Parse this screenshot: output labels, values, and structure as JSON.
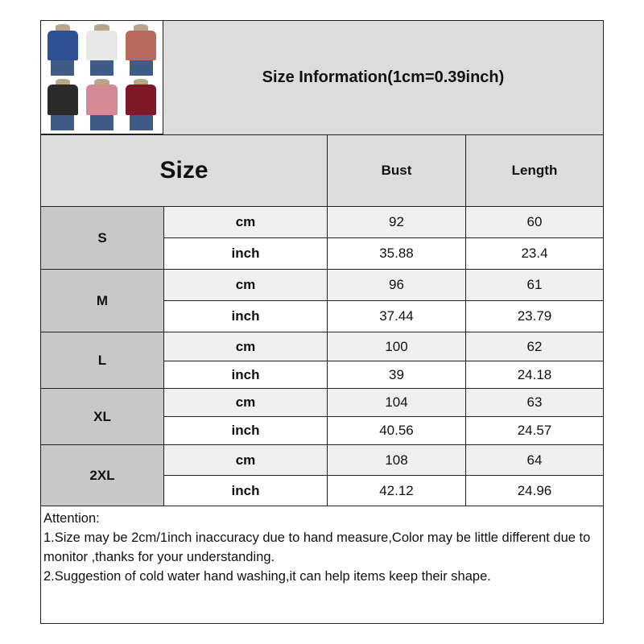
{
  "title": "Size Information(1cm=0.39inch)",
  "thumbnail_colors": [
    "#2f4f94",
    "#e8e8e8",
    "#b86b5c",
    "#2a2a2a",
    "#d48a94",
    "#7e1a28"
  ],
  "header": {
    "size": "Size",
    "bust": "Bust",
    "length": "Length"
  },
  "rows": [
    {
      "size": "S",
      "cm": {
        "unit": "cm",
        "bust": "92",
        "length": "60"
      },
      "inch": {
        "unit": "inch",
        "bust": "35.88",
        "length": "23.4"
      }
    },
    {
      "size": "M",
      "cm": {
        "unit": "cm",
        "bust": "96",
        "length": "61"
      },
      "inch": {
        "unit": "inch",
        "bust": "37.44",
        "length": "23.79"
      }
    },
    {
      "size": "L",
      "cm": {
        "unit": "cm",
        "bust": "100",
        "length": "62"
      },
      "inch": {
        "unit": "inch",
        "bust": "39",
        "length": "24.18"
      }
    },
    {
      "size": "XL",
      "cm": {
        "unit": "cm",
        "bust": "104",
        "length": "63"
      },
      "inch": {
        "unit": "inch",
        "bust": "40.56",
        "length": "24.57"
      }
    },
    {
      "size": "2XL",
      "cm": {
        "unit": "cm",
        "bust": "108",
        "length": "64"
      },
      "inch": {
        "unit": "inch",
        "bust": "42.12",
        "length": "24.96"
      }
    }
  ],
  "notes": [
    "Attention:",
    "1.Size may be 2cm/1inch inaccuracy due to hand measure,Color may be little different due to monitor ,thanks for your understanding.",
    "2.Suggestion of cold water hand washing,it can help items keep their shape."
  ]
}
